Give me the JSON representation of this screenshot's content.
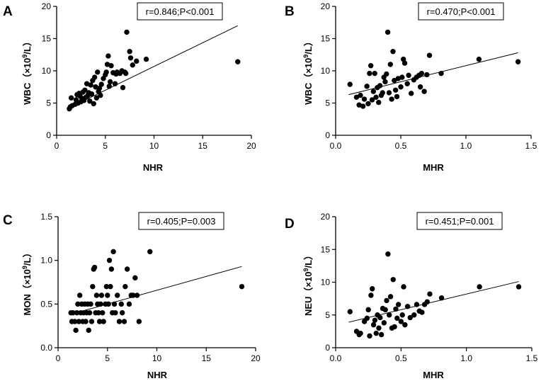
{
  "chart_data": [
    {
      "panel": "A",
      "type": "scatter",
      "xlabel": "NHR",
      "ylabel_prefix": "WBC（×10",
      "ylabel_exp": "9",
      "ylabel_suffix": "/L）",
      "xlim": [
        0,
        20
      ],
      "ylim": [
        0,
        20
      ],
      "xticks": [
        "0",
        "5",
        "10",
        "15",
        "20"
      ],
      "yticks": [
        "0",
        "5",
        "10",
        "15",
        "20"
      ],
      "stat": "r=0.846;P<0.001",
      "fit": [
        [
          1.2,
          4.2
        ],
        [
          18.6,
          17.0
        ]
      ],
      "points": [
        [
          1.3,
          4.1
        ],
        [
          1.4,
          4.4
        ],
        [
          1.5,
          5.8
        ],
        [
          1.6,
          4.6
        ],
        [
          1.9,
          4.8
        ],
        [
          2.0,
          5.5
        ],
        [
          2.1,
          6.3
        ],
        [
          2.2,
          5.0
        ],
        [
          2.3,
          6.5
        ],
        [
          2.4,
          6.1
        ],
        [
          2.5,
          5.2
        ],
        [
          2.6,
          5.7
        ],
        [
          2.7,
          6.7
        ],
        [
          2.8,
          5.4
        ],
        [
          2.9,
          7.0
        ],
        [
          3.0,
          5.9
        ],
        [
          3.1,
          8.0
        ],
        [
          3.2,
          6.2
        ],
        [
          3.3,
          6.6
        ],
        [
          3.4,
          5.3
        ],
        [
          3.5,
          7.8
        ],
        [
          3.6,
          6.4
        ],
        [
          3.7,
          8.5
        ],
        [
          3.8,
          4.9
        ],
        [
          3.9,
          9.0
        ],
        [
          4.0,
          7.5
        ],
        [
          4.1,
          5.8
        ],
        [
          4.2,
          9.8
        ],
        [
          4.3,
          6.8
        ],
        [
          4.4,
          7.3
        ],
        [
          4.5,
          6.2
        ],
        [
          4.6,
          7.9
        ],
        [
          4.8,
          8.8
        ],
        [
          5.0,
          9.4
        ],
        [
          5.1,
          9.8
        ],
        [
          5.2,
          11.0
        ],
        [
          5.3,
          12.3
        ],
        [
          5.4,
          7.6
        ],
        [
          5.5,
          8.3
        ],
        [
          5.6,
          10.8
        ],
        [
          5.8,
          9.7
        ],
        [
          6.0,
          8.0
        ],
        [
          6.1,
          9.5
        ],
        [
          6.2,
          9.8
        ],
        [
          6.5,
          9.6
        ],
        [
          6.7,
          10.0
        ],
        [
          6.8,
          7.4
        ],
        [
          7.0,
          9.8
        ],
        [
          7.1,
          9.6
        ],
        [
          7.2,
          16.0
        ],
        [
          7.5,
          13.0
        ],
        [
          7.6,
          12.0
        ],
        [
          7.8,
          10.9
        ],
        [
          8.2,
          11.5
        ],
        [
          9.2,
          11.8
        ],
        [
          18.6,
          11.4
        ]
      ]
    },
    {
      "panel": "B",
      "type": "scatter",
      "xlabel": "MHR",
      "ylabel_prefix": "WBC（×10",
      "ylabel_exp": "9",
      "ylabel_suffix": "/L）",
      "xlim": [
        0,
        1.5
      ],
      "ylim": [
        0,
        20
      ],
      "xticks": [
        "0.0",
        "0.5",
        "1.0",
        "1.5"
      ],
      "yticks": [
        "0",
        "5",
        "10",
        "15",
        "20"
      ],
      "stat": "r=0.470;P<0.001",
      "fit": [
        [
          0.1,
          6.3
        ],
        [
          1.4,
          12.8
        ]
      ],
      "points": [
        [
          0.11,
          7.9
        ],
        [
          0.16,
          5.9
        ],
        [
          0.18,
          4.7
        ],
        [
          0.19,
          6.2
        ],
        [
          0.21,
          4.5
        ],
        [
          0.22,
          5.6
        ],
        [
          0.24,
          7.6
        ],
        [
          0.25,
          4.9
        ],
        [
          0.26,
          9.6
        ],
        [
          0.27,
          10.8
        ],
        [
          0.28,
          5.5
        ],
        [
          0.29,
          6.8
        ],
        [
          0.3,
          9.6
        ],
        [
          0.31,
          5.9
        ],
        [
          0.32,
          7.4
        ],
        [
          0.33,
          5.1
        ],
        [
          0.34,
          7.7
        ],
        [
          0.35,
          6.2
        ],
        [
          0.36,
          6.6
        ],
        [
          0.37,
          9.0
        ],
        [
          0.38,
          8.3
        ],
        [
          0.39,
          9.5
        ],
        [
          0.4,
          16.0
        ],
        [
          0.41,
          6.6
        ],
        [
          0.42,
          11.0
        ],
        [
          0.43,
          5.6
        ],
        [
          0.44,
          13.0
        ],
        [
          0.45,
          8.5
        ],
        [
          0.46,
          7.0
        ],
        [
          0.47,
          6.0
        ],
        [
          0.48,
          8.8
        ],
        [
          0.5,
          7.5
        ],
        [
          0.51,
          9.0
        ],
        [
          0.52,
          11.8
        ],
        [
          0.53,
          11.2
        ],
        [
          0.55,
          8.0
        ],
        [
          0.56,
          9.3
        ],
        [
          0.58,
          6.5
        ],
        [
          0.6,
          8.6
        ],
        [
          0.62,
          9.0
        ],
        [
          0.64,
          9.3
        ],
        [
          0.65,
          7.5
        ],
        [
          0.66,
          9.6
        ],
        [
          0.68,
          6.8
        ],
        [
          0.7,
          9.4
        ],
        [
          0.72,
          12.4
        ],
        [
          0.81,
          9.6
        ],
        [
          1.1,
          11.8
        ],
        [
          1.4,
          11.4
        ]
      ]
    },
    {
      "panel": "C",
      "type": "scatter",
      "xlabel": "NHR",
      "ylabel_prefix": "MON（×10",
      "ylabel_exp": "9",
      "ylabel_suffix": "/L）",
      "xlim": [
        0,
        20
      ],
      "ylim": [
        0,
        1.5
      ],
      "xticks": [
        "0",
        "5",
        "10",
        "15",
        "20"
      ],
      "yticks": [
        "0.0",
        "0.5",
        "1.0",
        "1.5"
      ],
      "stat": "r=0.405;P=0.003",
      "fit": [
        [
          1.2,
          0.38
        ],
        [
          18.6,
          0.93
        ]
      ],
      "points": [
        [
          1.3,
          0.4
        ],
        [
          1.4,
          0.3
        ],
        [
          1.5,
          0.4
        ],
        [
          1.7,
          0.3
        ],
        [
          1.8,
          0.2
        ],
        [
          1.9,
          0.4
        ],
        [
          2.0,
          0.5
        ],
        [
          2.1,
          0.3
        ],
        [
          2.2,
          0.6
        ],
        [
          2.3,
          0.4
        ],
        [
          2.4,
          0.5
        ],
        [
          2.5,
          0.3
        ],
        [
          2.6,
          0.4
        ],
        [
          2.7,
          0.5
        ],
        [
          2.8,
          0.3
        ],
        [
          2.9,
          0.4
        ],
        [
          3.0,
          0.5
        ],
        [
          3.1,
          0.2
        ],
        [
          3.2,
          0.4
        ],
        [
          3.3,
          0.5
        ],
        [
          3.4,
          0.3
        ],
        [
          3.5,
          0.7
        ],
        [
          3.6,
          0.9
        ],
        [
          3.7,
          0.92
        ],
        [
          3.8,
          0.4
        ],
        [
          3.9,
          0.6
        ],
        [
          4.0,
          0.5
        ],
        [
          4.1,
          0.4
        ],
        [
          4.2,
          0.3
        ],
        [
          4.3,
          0.5
        ],
        [
          4.4,
          0.6
        ],
        [
          4.5,
          0.4
        ],
        [
          4.6,
          0.3
        ],
        [
          4.8,
          0.5
        ],
        [
          4.9,
          0.7
        ],
        [
          5.0,
          0.6
        ],
        [
          5.1,
          0.5
        ],
        [
          5.2,
          1.0
        ],
        [
          5.3,
          0.7
        ],
        [
          5.4,
          0.9
        ],
        [
          5.5,
          0.4
        ],
        [
          5.6,
          1.1
        ],
        [
          5.7,
          0.5
        ],
        [
          5.8,
          0.4
        ],
        [
          6.0,
          0.6
        ],
        [
          6.2,
          0.3
        ],
        [
          6.4,
          0.5
        ],
        [
          6.5,
          0.4
        ],
        [
          6.7,
          0.3
        ],
        [
          6.8,
          0.7
        ],
        [
          7.0,
          0.9
        ],
        [
          7.2,
          0.5
        ],
        [
          7.4,
          0.6
        ],
        [
          7.6,
          0.6
        ],
        [
          7.8,
          0.8
        ],
        [
          8.0,
          0.6
        ],
        [
          8.2,
          0.3
        ],
        [
          9.3,
          1.1
        ],
        [
          18.6,
          0.7
        ]
      ]
    },
    {
      "panel": "D",
      "type": "scatter",
      "xlabel": "MHR",
      "ylabel_prefix": "NEU（×10",
      "ylabel_exp": "9",
      "ylabel_suffix": "/L）",
      "xlim": [
        0,
        1.5
      ],
      "ylim": [
        0,
        20
      ],
      "xticks": [
        "0.0",
        "0.5",
        "1.0",
        "1.5"
      ],
      "yticks": [
        "0",
        "5",
        "10",
        "15",
        "20"
      ],
      "stat": "r=0.451;P=0.001",
      "fit": [
        [
          0.1,
          3.9
        ],
        [
          1.4,
          10.1
        ]
      ],
      "points": [
        [
          0.11,
          5.5
        ],
        [
          0.16,
          2.5
        ],
        [
          0.18,
          2.0
        ],
        [
          0.19,
          2.2
        ],
        [
          0.22,
          4.0
        ],
        [
          0.24,
          4.5
        ],
        [
          0.25,
          5.8
        ],
        [
          0.26,
          1.8
        ],
        [
          0.27,
          8.0
        ],
        [
          0.28,
          9.0
        ],
        [
          0.29,
          3.5
        ],
        [
          0.3,
          4.2
        ],
        [
          0.31,
          2.2
        ],
        [
          0.32,
          5.0
        ],
        [
          0.33,
          3.0
        ],
        [
          0.34,
          4.6
        ],
        [
          0.35,
          2.0
        ],
        [
          0.36,
          6.0
        ],
        [
          0.37,
          3.8
        ],
        [
          0.38,
          5.8
        ],
        [
          0.39,
          7.2
        ],
        [
          0.4,
          14.3
        ],
        [
          0.41,
          5.0
        ],
        [
          0.42,
          7.8
        ],
        [
          0.43,
          3.0
        ],
        [
          0.44,
          10.4
        ],
        [
          0.45,
          3.2
        ],
        [
          0.46,
          5.9
        ],
        [
          0.47,
          4.5
        ],
        [
          0.48,
          6.6
        ],
        [
          0.5,
          4.0
        ],
        [
          0.51,
          5.0
        ],
        [
          0.52,
          9.3
        ],
        [
          0.53,
          3.5
        ],
        [
          0.55,
          6.3
        ],
        [
          0.57,
          4.6
        ],
        [
          0.6,
          5.0
        ],
        [
          0.62,
          6.6
        ],
        [
          0.64,
          5.6
        ],
        [
          0.66,
          5.4
        ],
        [
          0.68,
          6.6
        ],
        [
          0.7,
          7.0
        ],
        [
          0.72,
          8.2
        ],
        [
          0.81,
          7.6
        ],
        [
          1.1,
          9.3
        ],
        [
          1.4,
          9.3
        ]
      ]
    }
  ]
}
